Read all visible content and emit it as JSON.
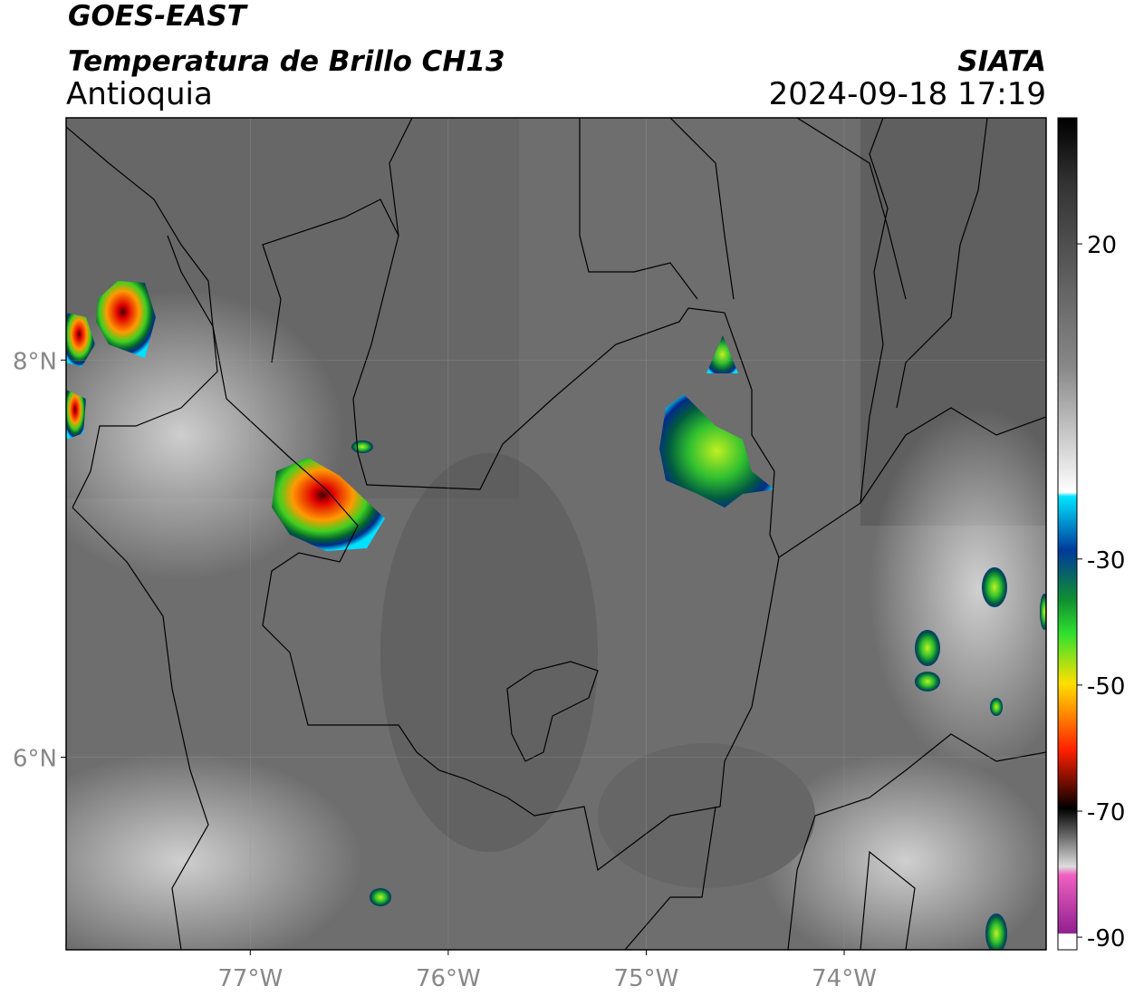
{
  "header": {
    "line1": "GOES-EAST",
    "line2": "Temperatura de Brillo CH13",
    "region": "Antioquia",
    "source": "SIATA",
    "datetime": "2024-09-18 17:19"
  },
  "map": {
    "xlim": [
      -77.93,
      -72.98
    ],
    "ylim": [
      5.03,
      9.22
    ],
    "xticks": [
      {
        "value": -77,
        "label": "77°W"
      },
      {
        "value": -76,
        "label": "76°W"
      },
      {
        "value": -75,
        "label": "75°W"
      },
      {
        "value": -74,
        "label": "74°W"
      }
    ],
    "yticks": [
      {
        "value": 6,
        "label": "6°N"
      },
      {
        "value": 8,
        "label": "8°N"
      }
    ],
    "grid": true
  },
  "colorbar": {
    "lim": [
      -92,
      40
    ],
    "ticks": [
      20,
      -30,
      -50,
      -70,
      -90
    ]
  }
}
